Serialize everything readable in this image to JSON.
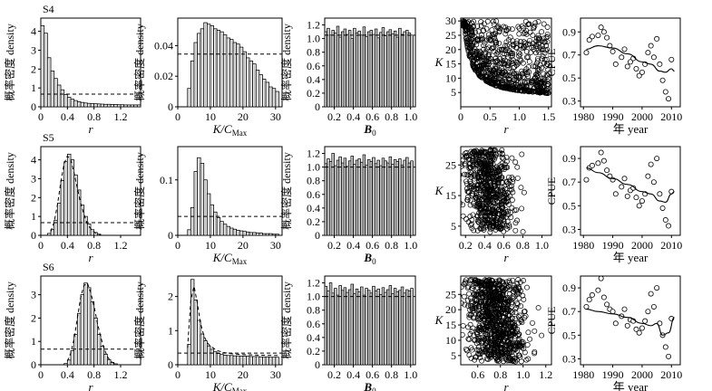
{
  "figure": {
    "rows": [
      {
        "label": "S4"
      },
      {
        "label": "S5"
      },
      {
        "label": "S6"
      }
    ],
    "y_label_hist": "概率密度 density",
    "x_label_r": "r",
    "x_label_kc": "K/C",
    "x_label_kc_sub": "Max",
    "x_label_b0": "B",
    "x_label_b0_sub": "0",
    "y_label_k": "K",
    "y_label_cpue": "CPUE",
    "x_label_year": "年 year"
  },
  "chart_data": [
    {
      "id": "S4-r",
      "type": "bar",
      "row": "S4",
      "xlabel": "r",
      "ylabel": "概率密度 density",
      "xlim": [
        0,
        1.5
      ],
      "ylim": [
        0,
        4.7
      ],
      "xticks": [
        0,
        0.4,
        0.8,
        1.2
      ],
      "yticks": [
        0,
        1,
        2,
        3,
        4
      ],
      "bin_start": 0,
      "bin_width": 0.05,
      "values": [
        4.3,
        3.9,
        2.6,
        1.9,
        1.5,
        1.15,
        0.9,
        0.65,
        0.5,
        0.4,
        0.33,
        0.27,
        0.23,
        0.2,
        0.18,
        0.17,
        0.16,
        0.15,
        0.14,
        0.13,
        0.13,
        0.12,
        0.12,
        0.11,
        0.11,
        0.1,
        0.1,
        0.1,
        0.1,
        0.1
      ],
      "prior_density": 0.67
    },
    {
      "id": "S4-kc",
      "type": "bar",
      "row": "S4",
      "xlabel": "K/CMax",
      "ylabel": "概率密度 density",
      "xlim": [
        0,
        32
      ],
      "ylim": [
        0,
        0.058
      ],
      "xticks": [
        0,
        10,
        20,
        30
      ],
      "yticks": [
        0,
        0.02,
        0.04
      ],
      "bin_start": 3,
      "bin_width": 1,
      "values": [
        0.012,
        0.03,
        0.042,
        0.048,
        0.051,
        0.055,
        0.054,
        0.053,
        0.051,
        0.05,
        0.049,
        0.047,
        0.045,
        0.044,
        0.042,
        0.041,
        0.039,
        0.036,
        0.032,
        0.03,
        0.028,
        0.024,
        0.021,
        0.018,
        0.016,
        0.013,
        0.012,
        0.01
      ],
      "prior_density": 0.0345
    },
    {
      "id": "S4-b0",
      "type": "bar",
      "row": "S4",
      "xlabel": "B0",
      "ylabel": "概率密度 density",
      "xlim": [
        0.1,
        1.05
      ],
      "ylim": [
        0,
        1.3
      ],
      "xticks": [
        0.2,
        0.4,
        0.6,
        0.8,
        1.0
      ],
      "yticks": [
        0,
        0.2,
        0.4,
        0.6,
        0.8,
        1.0,
        1.2
      ],
      "bin_start": 0.1,
      "bin_width": 0.025,
      "values": [
        1.1,
        1.15,
        1.05,
        1.12,
        1.08,
        1.18,
        1.02,
        1.1,
        1.14,
        1.06,
        1.12,
        1.0,
        1.15,
        1.08,
        1.11,
        1.05,
        1.17,
        1.03,
        1.1,
        1.12,
        1.06,
        1.14,
        1.01,
        1.09,
        1.16,
        1.04,
        1.1,
        1.13,
        1.07,
        1.11,
        1.02,
        1.15,
        1.06,
        1.1,
        1.12,
        1.08,
        1.05
      ],
      "prior_density": 1.05
    },
    {
      "id": "S4-rk",
      "type": "scatter",
      "row": "S4",
      "xlabel": "r",
      "ylabel": "K",
      "xlim": [
        0,
        1.55
      ],
      "ylim": [
        0,
        31
      ],
      "xticks": [
        0,
        0.5,
        1.0,
        1.5
      ],
      "yticks": [
        5,
        10,
        15,
        20,
        25,
        30
      ],
      "generator": {
        "n": 750,
        "seed": 4,
        "mode": "hyper"
      }
    },
    {
      "id": "S4-cpue",
      "type": "line",
      "row": "S4",
      "xlabel": "年 year",
      "ylabel": "CPUE",
      "xlim": [
        1979,
        2013
      ],
      "ylim": [
        0.25,
        1.02
      ],
      "xticks": [
        1980,
        1990,
        2000,
        2010
      ],
      "yticks": [
        0.3,
        0.5,
        0.7,
        0.9
      ],
      "points": {
        "x": [
          1981,
          1982,
          1983,
          1985,
          1986,
          1987,
          1988,
          1989,
          1990,
          1991,
          1993,
          1994,
          1995,
          1996,
          1997,
          1998,
          1999,
          2000,
          2001,
          2002,
          2003,
          2004,
          2005,
          2006,
          2007,
          2008,
          2009,
          2010
        ],
        "y": [
          0.72,
          0.83,
          0.86,
          0.87,
          0.94,
          0.9,
          0.85,
          0.78,
          0.73,
          0.62,
          0.68,
          0.75,
          0.6,
          0.64,
          0.67,
          0.58,
          0.52,
          0.55,
          0.62,
          0.72,
          0.78,
          0.68,
          0.84,
          0.62,
          0.48,
          0.38,
          0.32,
          0.66
        ]
      },
      "fit": {
        "x": [
          1981,
          1985,
          1990,
          1995,
          2000,
          2003,
          2006,
          2008,
          2010,
          2011
        ],
        "y": [
          0.75,
          0.78,
          0.76,
          0.71,
          0.64,
          0.62,
          0.56,
          0.55,
          0.58,
          0.56
        ]
      }
    },
    {
      "id": "S5-r",
      "type": "bar",
      "row": "S5",
      "xlabel": "r",
      "ylabel": "概率密度 density",
      "xlim": [
        0,
        1.5
      ],
      "ylim": [
        0,
        4.7
      ],
      "xticks": [
        0,
        0.4,
        0.8,
        1.2
      ],
      "yticks": [
        0,
        1,
        2,
        3,
        4
      ],
      "bin_start": 0.1,
      "bin_width": 0.05,
      "values": [
        0.1,
        0.3,
        0.8,
        1.7,
        2.9,
        3.9,
        4.3,
        4.0,
        3.2,
        2.4,
        1.6,
        1.0,
        0.6,
        0.3,
        0.15,
        0.06
      ],
      "prior_density": 0.67,
      "curve": {
        "x": [
          0.15,
          0.2,
          0.25,
          0.3,
          0.35,
          0.4,
          0.45,
          0.5,
          0.55,
          0.6,
          0.65,
          0.7,
          0.75,
          0.8,
          0.85,
          0.9
        ],
        "y": [
          0.2,
          0.7,
          1.6,
          2.8,
          3.8,
          4.2,
          4.0,
          3.3,
          2.5,
          1.7,
          1.1,
          0.6,
          0.35,
          0.17,
          0.08,
          0.02
        ]
      }
    },
    {
      "id": "S5-kc",
      "type": "bar",
      "row": "S5",
      "xlabel": "K/CMax",
      "ylabel": "概率密度 density",
      "xlim": [
        0,
        32
      ],
      "ylim": [
        0,
        0.16
      ],
      "xticks": [
        0,
        10,
        20,
        30
      ],
      "yticks": [
        0,
        0.1
      ],
      "bin_start": 3,
      "bin_width": 1,
      "values": [
        0.01,
        0.05,
        0.115,
        0.14,
        0.13,
        0.1,
        0.075,
        0.055,
        0.042,
        0.032,
        0.025,
        0.02,
        0.016,
        0.013,
        0.011,
        0.009,
        0.008,
        0.007,
        0.006,
        0.005,
        0.005,
        0.004,
        0.004,
        0.003,
        0.003,
        0.003,
        0.002,
        0.002
      ],
      "prior_density": 0.034
    },
    {
      "id": "S5-b0",
      "type": "bar",
      "row": "S5",
      "xlabel": "B0",
      "ylabel": "概率密度 density",
      "xlim": [
        0.1,
        1.05
      ],
      "ylim": [
        0,
        1.3
      ],
      "xticks": [
        0.2,
        0.4,
        0.6,
        0.8,
        1.0
      ],
      "yticks": [
        0,
        0.2,
        0.4,
        0.6,
        0.8,
        1.0,
        1.2
      ],
      "bin_start": 0.1,
      "bin_width": 0.025,
      "values": [
        1.05,
        1.12,
        1.08,
        1.2,
        1.02,
        1.1,
        1.15,
        1.06,
        1.13,
        1.01,
        1.09,
        1.16,
        1.04,
        1.1,
        1.12,
        1.07,
        1.18,
        1.03,
        1.11,
        1.08,
        1.14,
        1.05,
        1.1,
        1.02,
        1.13,
        1.09,
        1.06,
        1.15,
        1.04,
        1.11,
        1.08,
        1.12,
        1.03,
        1.1,
        1.14,
        1.06,
        1.09
      ],
      "prior_density": 1.0
    },
    {
      "id": "S5-rk",
      "type": "scatter",
      "row": "S5",
      "xlabel": "r",
      "ylabel": "K",
      "xlim": [
        0.15,
        1.1
      ],
      "ylim": [
        2,
        31
      ],
      "xticks": [
        0.2,
        0.4,
        0.6,
        0.8,
        1.0
      ],
      "yticks": [
        5,
        15,
        25
      ],
      "generator": {
        "n": 650,
        "seed": 5,
        "mode": "cloud",
        "cx": 0.45,
        "sx": 0.13
      }
    },
    {
      "id": "S5-cpue",
      "type": "line",
      "row": "S5",
      "xlabel": "年 year",
      "ylabel": "CPUE",
      "xlim": [
        1979,
        2013
      ],
      "ylim": [
        0.25,
        1.0
      ],
      "xticks": [
        1980,
        1990,
        2000,
        2010
      ],
      "yticks": [
        0.3,
        0.5,
        0.7,
        0.9
      ],
      "points": {
        "x": [
          1981,
          1982,
          1983,
          1985,
          1986,
          1987,
          1988,
          1989,
          1990,
          1991,
          1993,
          1994,
          1995,
          1996,
          1997,
          1998,
          1999,
          2000,
          2001,
          2002,
          2003,
          2004,
          2005,
          2006,
          2007,
          2008,
          2009,
          2010
        ],
        "y": [
          0.72,
          0.82,
          0.84,
          0.86,
          0.95,
          0.88,
          0.8,
          0.75,
          0.72,
          0.6,
          0.66,
          0.73,
          0.58,
          0.63,
          0.65,
          0.57,
          0.5,
          0.54,
          0.6,
          0.75,
          0.85,
          0.7,
          0.9,
          0.6,
          0.48,
          0.38,
          0.33,
          0.62
        ]
      },
      "fit": {
        "x": [
          1981,
          1985,
          1990,
          1995,
          2000,
          2003,
          2006,
          2008,
          2010,
          2011
        ],
        "y": [
          0.82,
          0.78,
          0.73,
          0.68,
          0.62,
          0.6,
          0.54,
          0.53,
          0.6,
          0.62
        ]
      }
    },
    {
      "id": "S6-r",
      "type": "bar",
      "row": "S6",
      "xlabel": "r",
      "ylabel": "概率密度 density",
      "xlim": [
        0,
        1.5
      ],
      "ylim": [
        0,
        3.8
      ],
      "xticks": [
        0,
        0.4,
        0.8,
        1.2
      ],
      "yticks": [
        0,
        1,
        2,
        3
      ],
      "bin_start": 0.35,
      "bin_width": 0.05,
      "values": [
        0.05,
        0.2,
        0.6,
        1.3,
        2.2,
        3.0,
        3.5,
        3.3,
        2.7,
        2.0,
        1.3,
        0.8,
        0.45,
        0.22,
        0.1,
        0.04
      ],
      "prior_density": 0.67,
      "curve": {
        "x": [
          0.4,
          0.45,
          0.5,
          0.55,
          0.6,
          0.65,
          0.7,
          0.75,
          0.8,
          0.85,
          0.9,
          0.95,
          1.0,
          1.05,
          1.1,
          1.15
        ],
        "y": [
          0.15,
          0.5,
          1.1,
          2.0,
          2.9,
          3.4,
          3.5,
          3.1,
          2.5,
          1.8,
          1.2,
          0.7,
          0.35,
          0.15,
          0.06,
          0.02
        ]
      }
    },
    {
      "id": "S6-kc",
      "type": "bar",
      "row": "S6",
      "xlabel": "K/CMax",
      "ylabel": "概率密度 density",
      "xlim": [
        0,
        32
      ],
      "ylim": [
        0,
        2.6
      ],
      "xticks": [
        0,
        10,
        20,
        30
      ],
      "yticks": [
        0,
        1,
        2
      ],
      "bin_start": 3,
      "bin_width": 1,
      "values": [
        0.6,
        2.5,
        1.9,
        1.3,
        0.9,
        0.7,
        0.55,
        0.45,
        0.38,
        0.33,
        0.3,
        0.28,
        0.27,
        0.27,
        0.26,
        0.26,
        0.25,
        0.25,
        0.25,
        0.24,
        0.24,
        0.24,
        0.23,
        0.23,
        0.23,
        0.22,
        0.22,
        0.22
      ],
      "prior_density": 0.34,
      "curve": {
        "x": [
          3,
          4,
          5,
          6,
          7,
          8,
          9,
          10,
          12,
          14,
          16,
          18,
          20,
          25,
          31
        ],
        "y": [
          0.5,
          1.9,
          2.3,
          1.8,
          1.2,
          0.85,
          0.65,
          0.55,
          0.42,
          0.36,
          0.33,
          0.31,
          0.3,
          0.28,
          0.27
        ]
      }
    },
    {
      "id": "S6-b0",
      "type": "bar",
      "row": "S6",
      "xlabel": "B0",
      "ylabel": "概率密度 density",
      "xlim": [
        0.1,
        1.05
      ],
      "ylim": [
        0,
        1.3
      ],
      "xticks": [
        0.2,
        0.4,
        0.6,
        0.8,
        1.0
      ],
      "yticks": [
        0,
        0.2,
        0.4,
        0.6,
        0.8,
        1.0,
        1.2
      ],
      "bin_start": 0.1,
      "bin_width": 0.025,
      "values": [
        1.15,
        1.08,
        1.2,
        1.05,
        1.12,
        1.02,
        1.16,
        1.09,
        1.13,
        1.06,
        1.1,
        1.18,
        1.04,
        1.11,
        1.07,
        1.14,
        1.02,
        1.12,
        1.09,
        1.05,
        1.15,
        1.08,
        1.11,
        1.03,
        1.13,
        1.06,
        1.1,
        1.16,
        1.04,
        1.12,
        1.07,
        1.09,
        1.14,
        1.05,
        1.1,
        1.08,
        1.12
      ],
      "prior_density": 1.0
    },
    {
      "id": "S6-rk",
      "type": "scatter",
      "row": "S6",
      "xlabel": "r",
      "ylabel": "K",
      "xlim": [
        0.45,
        1.25
      ],
      "ylim": [
        2,
        31
      ],
      "xticks": [
        0.6,
        0.8,
        1.0,
        1.2
      ],
      "yticks": [
        5,
        10,
        15,
        20,
        25
      ],
      "generator": {
        "n": 900,
        "seed": 6,
        "mode": "cloud",
        "cx": 0.76,
        "sx": 0.12
      }
    },
    {
      "id": "S6-cpue",
      "type": "line",
      "row": "S6",
      "xlabel": "年 year",
      "ylabel": "CPUE",
      "xlim": [
        1979,
        2013
      ],
      "ylim": [
        0.25,
        1.0
      ],
      "xticks": [
        1980,
        1990,
        2000,
        2010
      ],
      "yticks": [
        0.3,
        0.5,
        0.7,
        0.9
      ],
      "points": {
        "x": [
          1981,
          1982,
          1983,
          1985,
          1986,
          1987,
          1988,
          1989,
          1990,
          1991,
          1993,
          1994,
          1995,
          1996,
          1997,
          1998,
          1999,
          2000,
          2001,
          2002,
          2003,
          2004,
          2005,
          2006,
          2007,
          2008,
          2009,
          2010
        ],
        "y": [
          0.74,
          0.8,
          0.84,
          0.88,
          0.98,
          0.82,
          0.76,
          0.72,
          0.7,
          0.6,
          0.66,
          0.72,
          0.58,
          0.63,
          0.62,
          0.55,
          0.52,
          0.56,
          0.62,
          0.7,
          0.85,
          0.74,
          0.9,
          0.6,
          0.5,
          0.4,
          0.32,
          0.64
        ]
      },
      "fit": {
        "x": [
          1981,
          1985,
          1990,
          1995,
          2000,
          2003,
          2005,
          2007,
          2009,
          2011
        ],
        "y": [
          0.72,
          0.7,
          0.68,
          0.65,
          0.6,
          0.58,
          0.6,
          0.5,
          0.52,
          0.65
        ]
      }
    }
  ]
}
